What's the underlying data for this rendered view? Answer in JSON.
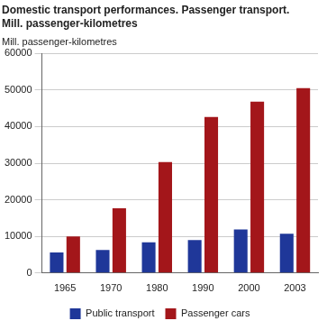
{
  "chart_data": {
    "type": "bar",
    "title": [
      "Domestic transport performances. Passenger transport.",
      "Mill. passenger-kilometres"
    ],
    "y_label": "Mill. passenger-kilometres",
    "categories": [
      "1965",
      "1970",
      "1980",
      "1990",
      "2000",
      "2003"
    ],
    "series": [
      {
        "name": "Public transport",
        "color": "#1f3799",
        "values": [
          5600,
          6300,
          8400,
          9000,
          11900,
          10700
        ]
      },
      {
        "name": "Passenger cars",
        "color": "#a3161a",
        "values": [
          10000,
          17700,
          30300,
          42600,
          46800,
          50500
        ]
      }
    ],
    "ylim": [
      0,
      60000
    ],
    "yticks": [
      0,
      10000,
      20000,
      30000,
      40000,
      50000,
      60000
    ],
    "grid": true,
    "legend": "bottom"
  }
}
